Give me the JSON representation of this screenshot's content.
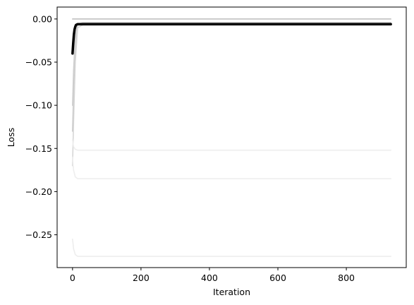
{
  "chart_data": {
    "type": "line",
    "title": "",
    "xlabel": "Iteration",
    "ylabel": "Loss",
    "xlim": [
      -45,
      975
    ],
    "ylim": [
      -0.288,
      0.0138
    ],
    "xticks": [
      0,
      200,
      400,
      600,
      800
    ],
    "xtick_labels": [
      "0",
      "200",
      "400",
      "600",
      "800"
    ],
    "yticks": [
      0.0,
      -0.05,
      -0.1,
      -0.15,
      -0.2,
      -0.25
    ],
    "ytick_labels": [
      "0.00",
      "−0.05",
      "−0.10",
      "−0.15",
      "−0.20",
      "−0.25"
    ],
    "grid": false,
    "legend": "none",
    "series": [
      {
        "color": "#bbbbbb",
        "x": [
          0,
          3,
          8,
          15,
          30,
          930
        ],
        "y": [
          0.0,
          0.0,
          0.0,
          0.0,
          0.0,
          0.0
        ]
      },
      {
        "color": "#c8c8c8",
        "x": [
          0,
          3,
          8,
          15,
          30,
          930
        ],
        "y": [
          -0.13,
          -0.09,
          -0.03,
          -0.007,
          -0.005,
          -0.005
        ]
      },
      {
        "color": "#cfcfcf",
        "x": [
          0,
          3,
          8,
          15,
          30,
          930
        ],
        "y": [
          -0.1,
          -0.06,
          -0.02,
          -0.006,
          -0.004,
          -0.004
        ]
      },
      {
        "color": "#d6d6d6",
        "x": [
          0,
          3,
          8,
          15,
          30,
          930
        ],
        "y": [
          -0.17,
          -0.12,
          -0.05,
          -0.01,
          -0.007,
          -0.007
        ]
      },
      {
        "color": "#eeeeee",
        "x": [
          0,
          3,
          8,
          15,
          30,
          930
        ],
        "y": [
          -0.14,
          -0.148,
          -0.151,
          -0.152,
          -0.152,
          -0.152
        ]
      },
      {
        "color": "#eeeeee",
        "x": [
          0,
          3,
          8,
          15,
          30,
          930
        ],
        "y": [
          -0.16,
          -0.175,
          -0.183,
          -0.185,
          -0.185,
          -0.185
        ]
      },
      {
        "color": "#ededed",
        "x": [
          0,
          3,
          8,
          15,
          30,
          930
        ],
        "y": [
          -0.255,
          -0.266,
          -0.273,
          -0.275,
          -0.275,
          -0.275
        ]
      },
      {
        "color": "#000000",
        "x": [
          0,
          2,
          4,
          6,
          8,
          10,
          12,
          15,
          20,
          30,
          930
        ],
        "y": [
          -0.04,
          -0.028,
          -0.018,
          -0.012,
          -0.009,
          -0.007,
          -0.0065,
          -0.006,
          -0.006,
          -0.006,
          -0.006
        ]
      }
    ]
  }
}
